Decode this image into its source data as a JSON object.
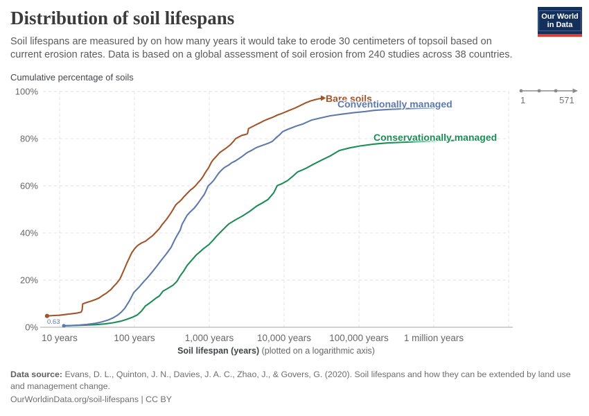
{
  "header": {
    "title": "Distribution of soil lifespans",
    "subtitle": "Soil lifespans are measured by on how many years it would take to erode 30 centimeters of topsoil based on current erosion rates. Data is based on a global assessment of soil erosion from 240 studies across 38 countries.",
    "logo_line1": "Our World",
    "logo_line2": "in Data"
  },
  "range_widget": {
    "start_label": "1",
    "end_label": "571"
  },
  "footer": {
    "data_source_label": "Data source:",
    "data_source_text": " Evans, D. L., Quinton, J. N., Davies, J. A. C., Zhao, J., & Govers, G. (2020). Soil lifespans and how they can be extended by land use and management change.",
    "url_line": "OurWorldinData.org/soil-lifespans | CC BY"
  },
  "chart_data": {
    "type": "line",
    "title": "Distribution of soil lifespans",
    "ylabel": "Cumulative percentage of soils",
    "xlabel": "Soil lifespan (years)",
    "xlabel_note": " (plotted on a logarithmic axis)",
    "x_scale": "log",
    "x_range": [
      10,
      10000000
    ],
    "ylim": [
      0,
      100
    ],
    "grid": "dashed",
    "x_ticks": [
      {
        "value": 10,
        "label": "10 years"
      },
      {
        "value": 100,
        "label": "100 years"
      },
      {
        "value": 1000,
        "label": "1,000 years"
      },
      {
        "value": 10000,
        "label": "10,000 years"
      },
      {
        "value": 100000,
        "label": "100,000 years"
      },
      {
        "value": 1000000,
        "label": "1 million years"
      }
    ],
    "y_ticks": [
      {
        "value": 0,
        "label": "0%"
      },
      {
        "value": 20,
        "label": "20%"
      },
      {
        "value": 40,
        "label": "40%"
      },
      {
        "value": 60,
        "label": "60%"
      },
      {
        "value": 80,
        "label": "80%"
      },
      {
        "value": 100,
        "label": "100%"
      }
    ],
    "series": [
      {
        "name": "Bare soils",
        "color": "#a2552b",
        "start_dot": true,
        "end_arrow": true,
        "points": [
          [
            6.8,
            4.8
          ],
          [
            8.5,
            5.0
          ],
          [
            10,
            5.1
          ],
          [
            12,
            5.4
          ],
          [
            14.5,
            5.7
          ],
          [
            17,
            6.0
          ],
          [
            19.4,
            6.4
          ],
          [
            20,
            7.3
          ],
          [
            20.4,
            9.9
          ],
          [
            23,
            10.5
          ],
          [
            27,
            11.2
          ],
          [
            31,
            11.9
          ],
          [
            34,
            12.5
          ],
          [
            38,
            13.6
          ],
          [
            42,
            14.4
          ],
          [
            45,
            15.2
          ],
          [
            48.5,
            16.0
          ],
          [
            53,
            17.4
          ],
          [
            58,
            18.7
          ],
          [
            64,
            20.5
          ],
          [
            68,
            22.3
          ],
          [
            74,
            25.0
          ],
          [
            80,
            27.5
          ],
          [
            86,
            29.6
          ],
          [
            92,
            31.6
          ],
          [
            100,
            33.2
          ],
          [
            107,
            34.3
          ],
          [
            114,
            35.0
          ],
          [
            125,
            35.8
          ],
          [
            140,
            36.5
          ],
          [
            155,
            37.6
          ],
          [
            174,
            38.8
          ],
          [
            195,
            40.4
          ],
          [
            216,
            41.9
          ],
          [
            235,
            43.6
          ],
          [
            250,
            44.6
          ],
          [
            270,
            45.9
          ],
          [
            290,
            47.3
          ],
          [
            310,
            48.7
          ],
          [
            330,
            50.1
          ],
          [
            355,
            51.8
          ],
          [
            375,
            52.6
          ],
          [
            400,
            53.3
          ],
          [
            427,
            54.2
          ],
          [
            460,
            55.4
          ],
          [
            490,
            56.3
          ],
          [
            517,
            57.1
          ],
          [
            560,
            58.2
          ],
          [
            600,
            58.9
          ],
          [
            640,
            59.7
          ],
          [
            690,
            60.9
          ],
          [
            730,
            61.8
          ],
          [
            775,
            62.7
          ],
          [
            830,
            64.1
          ],
          [
            880,
            65.5
          ],
          [
            920,
            66.4
          ],
          [
            968,
            67.4
          ],
          [
            1000,
            68.2
          ],
          [
            1070,
            70.1
          ],
          [
            1140,
            71.2
          ],
          [
            1250,
            72.6
          ],
          [
            1380,
            74.1
          ],
          [
            1480,
            74.8
          ],
          [
            1600,
            75.5
          ],
          [
            1750,
            76.4
          ],
          [
            1940,
            77.6
          ],
          [
            2100,
            78.8
          ],
          [
            2250,
            80.0
          ],
          [
            2500,
            80.8
          ],
          [
            2730,
            81.4
          ],
          [
            3000,
            81.7
          ],
          [
            3240,
            82.1
          ],
          [
            3350,
            84.3
          ],
          [
            3700,
            85.0
          ],
          [
            4330,
            86.1
          ],
          [
            4900,
            86.9
          ],
          [
            5370,
            87.6
          ],
          [
            6200,
            88.4
          ],
          [
            7200,
            89.2
          ],
          [
            8100,
            90.0
          ],
          [
            9000,
            90.5
          ],
          [
            10000,
            91.1
          ],
          [
            11300,
            91.8
          ],
          [
            12600,
            92.4
          ],
          [
            14000,
            93.0
          ],
          [
            15300,
            93.6
          ],
          [
            17000,
            94.3
          ],
          [
            19400,
            95.2
          ],
          [
            21000,
            95.6
          ],
          [
            22500,
            96.0
          ],
          [
            25000,
            96.4
          ],
          [
            29000,
            96.9
          ]
        ]
      },
      {
        "name": "Conventionally managed",
        "color": "#5d79ad",
        "start_dot": true,
        "start_label": "0.63",
        "points": [
          [
            11.4,
            0.63
          ],
          [
            14,
            0.7
          ],
          [
            18,
            0.9
          ],
          [
            23,
            1.2
          ],
          [
            29,
            1.6
          ],
          [
            36,
            2.2
          ],
          [
            44,
            3.0
          ],
          [
            52,
            4.0
          ],
          [
            60,
            5.2
          ],
          [
            67,
            6.5
          ],
          [
            74,
            8.0
          ],
          [
            85,
            11.0
          ],
          [
            98,
            14.8
          ],
          [
            115,
            17.0
          ],
          [
            132,
            19.2
          ],
          [
            152,
            21.3
          ],
          [
            174,
            23.6
          ],
          [
            200,
            26.0
          ],
          [
            229,
            28.5
          ],
          [
            265,
            31.0
          ],
          [
            309,
            33.9
          ],
          [
            350,
            37.5
          ],
          [
            408,
            41.2
          ],
          [
            434,
            43.7
          ],
          [
            470,
            45.7
          ],
          [
            505,
            47.5
          ],
          [
            560,
            49.0
          ],
          [
            628,
            50.5
          ],
          [
            700,
            52.4
          ],
          [
            780,
            54.5
          ],
          [
            864,
            56.5
          ],
          [
            968,
            60.0
          ],
          [
            1070,
            61.3
          ],
          [
            1150,
            62.4
          ],
          [
            1330,
            65.3
          ],
          [
            1470,
            66.8
          ],
          [
            1600,
            67.8
          ],
          [
            1815,
            68.8
          ],
          [
            2000,
            69.8
          ],
          [
            2245,
            70.6
          ],
          [
            2500,
            71.6
          ],
          [
            2780,
            72.6
          ],
          [
            3210,
            74.1
          ],
          [
            3660,
            75.0
          ],
          [
            4250,
            76.2
          ],
          [
            5260,
            77.3
          ],
          [
            6100,
            78.0
          ],
          [
            6920,
            78.8
          ],
          [
            7900,
            80.5
          ],
          [
            8800,
            81.8
          ],
          [
            9570,
            83.0
          ],
          [
            11300,
            84.0
          ],
          [
            14400,
            85.3
          ],
          [
            18000,
            86.3
          ],
          [
            23400,
            87.9
          ],
          [
            30000,
            88.7
          ],
          [
            41500,
            89.7
          ],
          [
            60000,
            90.4
          ],
          [
            83800,
            91.0
          ],
          [
            120000,
            91.5
          ],
          [
            159000,
            92.0
          ],
          [
            250000,
            92.4
          ],
          [
            400000,
            92.7
          ],
          [
            650000,
            92.9
          ],
          [
            1000000,
            93.1
          ]
        ]
      },
      {
        "name": "Conservationally managed",
        "color": "#1e8c55",
        "start_dot": true,
        "points": [
          [
            11.4,
            0.63
          ],
          [
            16,
            0.75
          ],
          [
            22,
            0.9
          ],
          [
            30,
            1.1
          ],
          [
            40,
            1.4
          ],
          [
            52,
            1.9
          ],
          [
            66,
            2.6
          ],
          [
            80,
            3.4
          ],
          [
            95,
            4.3
          ],
          [
            110,
            5.3
          ],
          [
            125,
            7.0
          ],
          [
            140,
            9.0
          ],
          [
            160,
            10.3
          ],
          [
            174,
            11.2
          ],
          [
            195,
            12.4
          ],
          [
            216,
            13.3
          ],
          [
            240,
            15.3
          ],
          [
            280,
            16.5
          ],
          [
            330,
            17.9
          ],
          [
            370,
            19.5
          ],
          [
            408,
            21.8
          ],
          [
            450,
            23.6
          ],
          [
            505,
            26.2
          ],
          [
            580,
            28.4
          ],
          [
            667,
            30.6
          ],
          [
            750,
            32.0
          ],
          [
            850,
            33.5
          ],
          [
            1000,
            35.2
          ],
          [
            1130,
            37.0
          ],
          [
            1265,
            38.8
          ],
          [
            1535,
            41.5
          ],
          [
            1815,
            43.8
          ],
          [
            2245,
            45.6
          ],
          [
            2780,
            47.2
          ],
          [
            3440,
            49.1
          ],
          [
            4250,
            51.3
          ],
          [
            5100,
            52.7
          ],
          [
            6100,
            54.2
          ],
          [
            7250,
            57.0
          ],
          [
            8100,
            60.1
          ],
          [
            9500,
            61.0
          ],
          [
            11100,
            62.2
          ],
          [
            13000,
            64.0
          ],
          [
            15200,
            65.9
          ],
          [
            17500,
            66.7
          ],
          [
            20050,
            67.6
          ],
          [
            24850,
            69.2
          ],
          [
            32200,
            71.0
          ],
          [
            41500,
            72.7
          ],
          [
            54800,
            75.0
          ],
          [
            75300,
            76.1
          ],
          [
            103500,
            76.9
          ],
          [
            159000,
            77.7
          ],
          [
            244000,
            78.2
          ],
          [
            462000,
            78.6
          ],
          [
            870000,
            79.0
          ],
          [
            1640000,
            79.2
          ],
          [
            3830000,
            79.4
          ]
        ]
      }
    ]
  }
}
